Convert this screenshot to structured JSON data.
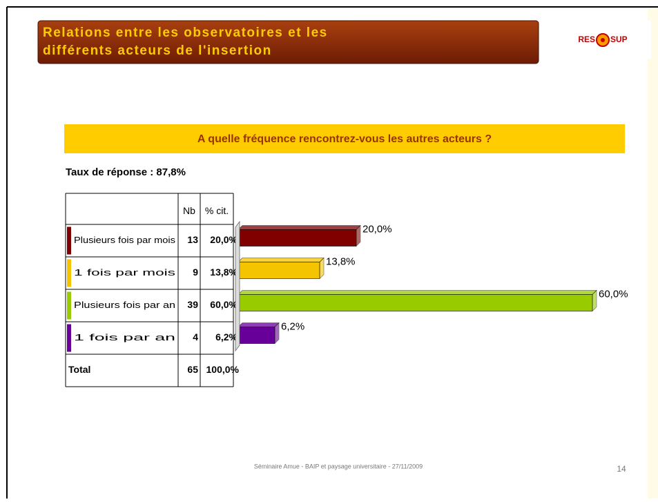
{
  "slide": {
    "title": "Relations entre les observatoires et les différents acteurs de l'insertion",
    "logo": [
      "RES",
      "SUP"
    ],
    "footer": "Séminaire Amue - BAIP et paysage universitaire - 27/11/2009",
    "page": "14"
  },
  "chart_data": {
    "type": "bar",
    "orientation": "horizontal",
    "title": "A quelle fréquence rencontrez-vous les autres acteurs ?",
    "subtitle": "Taux de réponse : 87,8%",
    "categories": [
      "Plusieurs fois par mois",
      "1 fois par mois",
      "Plusieurs fois par an",
      "1 fois par an"
    ],
    "values": [
      20.0,
      13.8,
      60.0,
      6.2
    ],
    "value_labels": [
      "20,0%",
      "13,8%",
      "60,0%",
      "6,2%"
    ],
    "colors": [
      "#800000",
      "#f5c400",
      "#99cc00",
      "#660099"
    ],
    "table": {
      "headers": [
        "Nb",
        "% cit."
      ],
      "counts": [
        13,
        9,
        39,
        4
      ],
      "total": {
        "label": "Total",
        "count": 65,
        "value_label": "100,0%"
      }
    }
  }
}
